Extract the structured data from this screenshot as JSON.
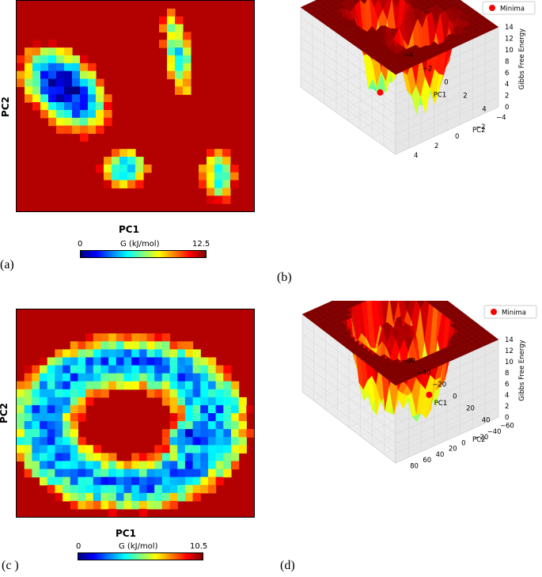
{
  "chart_data": [
    {
      "panel_label": "(a)",
      "type": "heatmap",
      "xlabel": "PC1",
      "ylabel": "PC2",
      "colorbar": {
        "label": "G (kJ/mol)",
        "min_label": "0",
        "max_label": "12.5",
        "range": [
          0,
          12.5
        ],
        "colormap": "jet"
      },
      "background_value": 12.5,
      "regions": [
        {
          "name": "main-basin",
          "cx": 0.2,
          "cy": 0.42,
          "rx": 0.16,
          "ry": 0.26,
          "rot": -35,
          "min": 0.5
        },
        {
          "name": "lower-basin",
          "cx": 0.45,
          "cy": 0.8,
          "rx": 0.11,
          "ry": 0.1,
          "rot": 0,
          "min": 4.0
        },
        {
          "name": "upper-arm",
          "cx": 0.68,
          "cy": 0.25,
          "rx": 0.06,
          "ry": 0.22,
          "rot": -10,
          "min": 5.5
        },
        {
          "name": "right-lobe",
          "cx": 0.85,
          "cy": 0.83,
          "rx": 0.08,
          "ry": 0.13,
          "rot": 0,
          "min": 5.5
        }
      ]
    },
    {
      "panel_label": "(b)",
      "type": "surface3d",
      "xlabel": "PC1",
      "ylabel": "PC2",
      "zlabel": "Gibbs Free Energy",
      "legend": {
        "label": "Minima",
        "placement": "top-right"
      },
      "x_ticks": [
        "−4",
        "−2",
        "0",
        "2",
        "4"
      ],
      "y_ticks": [
        "4",
        "2",
        "0",
        "−2",
        "−4"
      ],
      "z_ticks": [
        "0",
        "2",
        "4",
        "6",
        "8",
        "10",
        "12",
        "14"
      ],
      "zlim": [
        0,
        14
      ],
      "minimum_z": 0
    },
    {
      "panel_label": "(c )",
      "type": "heatmap",
      "xlabel": "PC1",
      "ylabel": "PC2",
      "colorbar": {
        "label": "G (kJ/mol)",
        "min_label": "0",
        "max_label": "10.5",
        "range": [
          0,
          10.5
        ],
        "colormap": "jet"
      },
      "background_value": 10.5,
      "regions": [
        {
          "name": "ring",
          "cx": 0.47,
          "cy": 0.55,
          "rx": 0.36,
          "ry": 0.3,
          "rot": 0,
          "min": 3.0,
          "ring_width": 0.14
        },
        {
          "name": "right-basin",
          "cx": 0.72,
          "cy": 0.62,
          "rx": 0.1,
          "ry": 0.1,
          "rot": 0,
          "min": 1.5
        }
      ]
    },
    {
      "panel_label": "(d)",
      "type": "surface3d",
      "xlabel": "PC1",
      "ylabel": "PC2",
      "zlabel": "Gibbs Free Energy",
      "legend": {
        "label": "Minima",
        "placement": "top-right"
      },
      "x_ticks": [
        "−60",
        "−40",
        "−20",
        "0",
        "20",
        "40"
      ],
      "y_ticks": [
        "80",
        "60",
        "40",
        "20",
        "0",
        "−20",
        "−40",
        "−60"
      ],
      "z_ticks": [
        "0",
        "2",
        "4",
        "6",
        "8",
        "10",
        "12",
        "14"
      ],
      "zlim": [
        0,
        14
      ],
      "minimum_z": 0
    }
  ]
}
